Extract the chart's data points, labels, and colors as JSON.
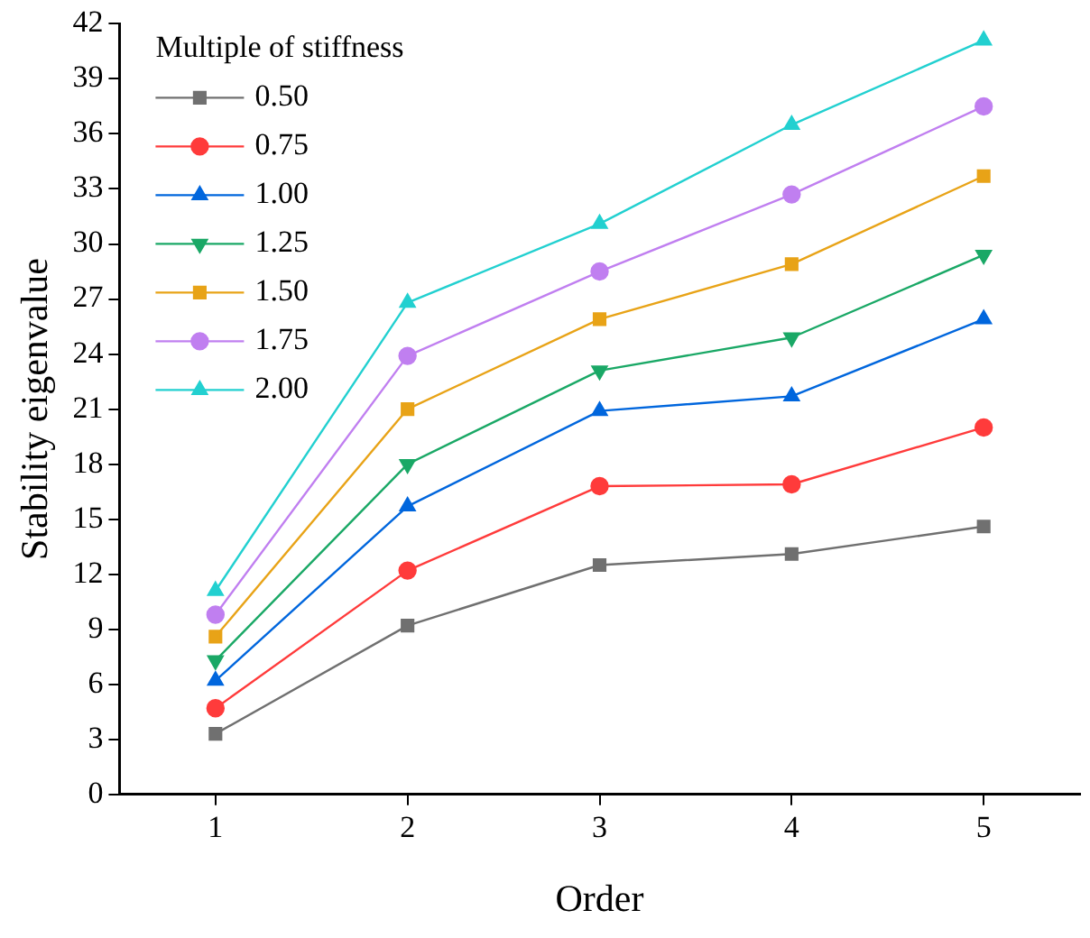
{
  "chart_data": {
    "type": "line",
    "xlabel": "Order",
    "ylabel": "Stability eigenvalue",
    "legend_title": "Multiple of stiffness",
    "legend": "top left",
    "grid": false,
    "categories": [
      "1",
      "2",
      "3",
      "4",
      "5"
    ],
    "ylim": [
      0,
      42
    ],
    "yticks": [
      0,
      3,
      6,
      9,
      12,
      15,
      18,
      21,
      24,
      27,
      30,
      33,
      36,
      39,
      42
    ],
    "series": [
      {
        "name": "0.50",
        "color": "#707070",
        "marker": "square",
        "values": [
          3.3,
          9.2,
          12.5,
          13.1,
          14.6
        ]
      },
      {
        "name": "0.75",
        "color": "#ff3b3b",
        "marker": "circle",
        "values": [
          4.7,
          12.2,
          16.8,
          16.9,
          20.0
        ]
      },
      {
        "name": "1.00",
        "color": "#0066dd",
        "marker": "triangle",
        "values": [
          6.2,
          15.7,
          20.9,
          21.7,
          25.9
        ]
      },
      {
        "name": "1.25",
        "color": "#1aa866",
        "marker": "triangle_down",
        "values": [
          7.3,
          18.0,
          23.1,
          24.9,
          29.4
        ]
      },
      {
        "name": "1.50",
        "color": "#e8a317",
        "marker": "square",
        "values": [
          8.6,
          21.0,
          25.9,
          28.9,
          33.7
        ]
      },
      {
        "name": "1.75",
        "color": "#c07ff0",
        "marker": "circle",
        "values": [
          9.8,
          23.9,
          28.5,
          32.7,
          37.5
        ]
      },
      {
        "name": "2.00",
        "color": "#22d0d0",
        "marker": "triangle",
        "values": [
          11.1,
          26.8,
          31.1,
          36.5,
          41.1
        ]
      }
    ]
  }
}
